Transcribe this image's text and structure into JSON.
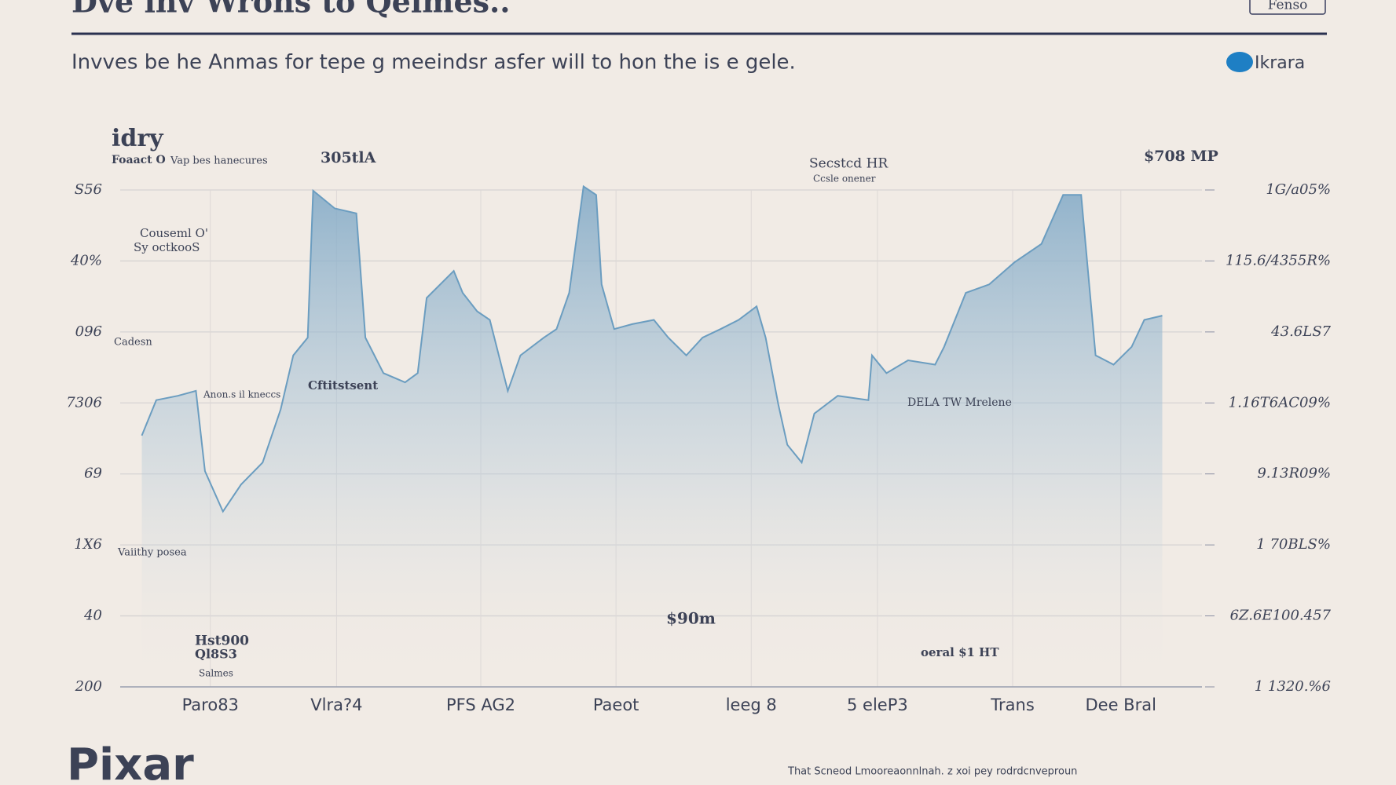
{
  "header": {
    "title": "Dve inv Wrons to Qeimes..",
    "button": "Fenso",
    "subtitle": "Invves be he Anmas for tepe g meeindsr asfer will to hon  the is e gele.",
    "logo": "Ikrara"
  },
  "chart_data": {
    "type": "area",
    "x": [
      1.2,
      2,
      3.2,
      4.2,
      4.7,
      5.7,
      6.7,
      7.9,
      8.9,
      9.6,
      10.4,
      10.7,
      11.9,
      13.1,
      13.6,
      14.6,
      15.8,
      16.5,
      17,
      18.5,
      19,
      19.8,
      20.5,
      21.5,
      22.2,
      23.5,
      24.2,
      24.9,
      25.7,
      26.4,
      26.7,
      27.4,
      28.4,
      29.6,
      30.4,
      31.4,
      32.3,
      33.3,
      34.3,
      35.3,
      35.8,
      36.5,
      37,
      37.8,
      38.5,
      39.8,
      41.5,
      41.7,
      42.5,
      43.7,
      45.2,
      45.7,
      46.9,
      48.2,
      49.6,
      51.1,
      52.3,
      53.3,
      54.1,
      55.1,
      56.1,
      56.8,
      57.8
    ],
    "values": [
      3.54,
      4.04,
      4.1,
      4.17,
      3.04,
      2.47,
      2.85,
      3.16,
      3.91,
      4.67,
      4.92,
      6.99,
      6.74,
      6.67,
      4.92,
      4.42,
      4.29,
      4.42,
      5.48,
      5.86,
      5.55,
      5.29,
      5.17,
      4.17,
      4.67,
      4.92,
      5.04,
      5.55,
      7.05,
      6.93,
      5.67,
      5.04,
      5.11,
      5.17,
      4.92,
      4.67,
      4.92,
      5.04,
      5.17,
      5.36,
      4.92,
      3.98,
      3.41,
      3.16,
      3.85,
      4.1,
      4.04,
      4.67,
      4.42,
      4.6,
      4.54,
      4.79,
      5.55,
      5.67,
      5.98,
      6.24,
      6.93,
      6.93,
      4.67,
      4.54,
      4.79,
      5.17,
      5.23
    ],
    "color": "#6b9dc0",
    "xlim": [
      0,
      60
    ],
    "xticks": [
      {
        "value": 5,
        "label": "Paro83"
      },
      {
        "value": 12,
        "label": "Vlra?4"
      },
      {
        "value": 20,
        "label": "PFS AG2"
      },
      {
        "value": 27.5,
        "label": "Paeot"
      },
      {
        "value": 35,
        "label": "leeg 8"
      },
      {
        "value": 42,
        "label": "5 eleP3"
      },
      {
        "value": 49.5,
        "label": "Trans"
      },
      {
        "value": 55.5,
        "label": "Dee Bral"
      }
    ],
    "ylim": [
      0,
      7
    ],
    "yticks": [
      {
        "value": 0,
        "label": "200"
      },
      {
        "value": 1,
        "label": "40"
      },
      {
        "value": 2,
        "label": "1X6"
      },
      {
        "value": 3,
        "label": "69"
      },
      {
        "value": 4,
        "label": "7306"
      },
      {
        "value": 5,
        "label": "096"
      },
      {
        "value": 6,
        "label": "40%"
      },
      {
        "value": 7,
        "label": "S56"
      }
    ],
    "y2lim": [
      0,
      7
    ],
    "y2ticks": [
      {
        "value": 0,
        "label": "1 1320.%6"
      },
      {
        "value": 1,
        "label": "6Z.6E100.457"
      },
      {
        "value": 2,
        "label": "1 70BLS%"
      },
      {
        "value": 3,
        "label": "9.13R09%"
      },
      {
        "value": 4,
        "label": "1.16T6AC09%"
      },
      {
        "value": 5,
        "label": "43.6LS7"
      },
      {
        "value": 6,
        "label": "115.6/4355R%"
      },
      {
        "value": 7,
        "label": "1G/a05%"
      }
    ],
    "grid": true,
    "annotations": [
      "idry",
      "Foaact O",
      "Vap bes hanecures",
      "305tlA",
      "Secstcd HR",
      "Ccsle onener",
      "$708 MP",
      "Couseml O'",
      "Sy octkooS",
      "Cftitstsent",
      "Anon.s il kneccs",
      "DELA TW Mrelene",
      "$90m",
      "oeral $1 HT",
      "Hst900",
      "Ql8S3",
      "Salmes",
      "Vaiithy posea",
      "Cadesn"
    ]
  },
  "footer": {
    "brand": "Pixar",
    "note": "That Scneod Lmooreaonnlnah. z xoi pey rodrdcnveproun"
  }
}
